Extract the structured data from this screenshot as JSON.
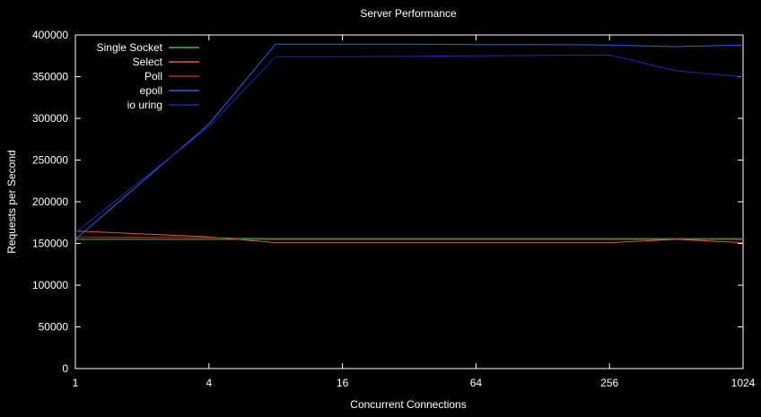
{
  "chart_data": {
    "type": "line",
    "title": "Server Performance",
    "xlabel": "Concurrent Connections",
    "ylabel": "Requests per Second",
    "x_scale": "log2",
    "xlim": [
      1,
      1024
    ],
    "ylim": [
      0,
      400000
    ],
    "xticks": [
      1,
      4,
      16,
      64,
      256,
      1024
    ],
    "xtick_labels": [
      "1",
      "4",
      "16",
      "64",
      "256",
      "1024"
    ],
    "yticks": [
      0,
      50000,
      100000,
      150000,
      200000,
      250000,
      300000,
      350000,
      400000
    ],
    "ytick_labels": [
      "0",
      "50000",
      "100000",
      "150000",
      "200000",
      "250000",
      "300000",
      "350000",
      "400000"
    ],
    "grid": false,
    "legend_position": "top-left",
    "series": [
      {
        "name": "Single Socket",
        "color": "#3fbf3f",
        "x": [
          1,
          1024
        ],
        "y": [
          155000,
          155000
        ]
      },
      {
        "name": "Select",
        "color": "#e05555",
        "x": [
          1,
          4,
          8,
          16,
          32,
          64,
          128,
          256,
          512,
          1024
        ],
        "y": [
          165000,
          158000,
          151000,
          151000,
          151000,
          151000,
          151000,
          151000,
          155000,
          151000
        ]
      },
      {
        "name": "Poll",
        "color": "#b03020",
        "x": [
          1,
          4,
          8,
          16,
          32,
          64,
          128,
          256,
          512,
          1024
        ],
        "y": [
          158000,
          157000,
          156000,
          156000,
          156000,
          156000,
          156000,
          156000,
          156000,
          156000
        ]
      },
      {
        "name": "epoll",
        "color": "#2f5fe0",
        "x": [
          1,
          4,
          8,
          16,
          32,
          64,
          128,
          256,
          512,
          1024
        ],
        "y": [
          155000,
          293000,
          389000,
          389000,
          389000,
          388500,
          388500,
          388000,
          386000,
          388000
        ]
      },
      {
        "name": "io uring",
        "color": "#1c2cb0",
        "x": [
          1,
          4,
          8,
          16,
          32,
          64,
          128,
          256,
          512,
          1024
        ],
        "y": [
          163000,
          290000,
          374000,
          374000,
          374500,
          375000,
          375500,
          376000,
          357000,
          350000
        ]
      }
    ]
  }
}
